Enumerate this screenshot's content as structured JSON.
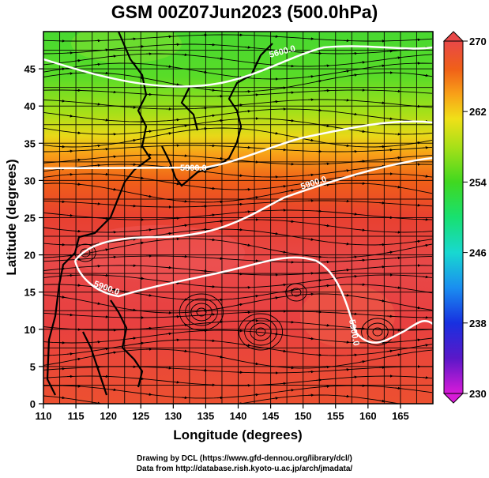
{
  "title": "GSM 00Z07Jun2023 (500.0hPa)",
  "axes": {
    "xlabel": "Longitude (degrees)",
    "ylabel": "Latitude  (degrees)",
    "xlim": [
      110,
      170
    ],
    "ylim": [
      0,
      50
    ],
    "xticks": [
      "110",
      "115",
      "120",
      "125",
      "130",
      "135",
      "140",
      "145",
      "150",
      "155",
      "160",
      "165"
    ],
    "yticks": [
      "0",
      "5",
      "10",
      "15",
      "20",
      "25",
      "30",
      "35",
      "40",
      "45"
    ]
  },
  "colorbar": {
    "range": [
      230,
      270
    ],
    "labels": [
      "270",
      "262",
      "254",
      "246",
      "238",
      "230"
    ],
    "colors": [
      "#d81bd8",
      "#5a18c8",
      "#1830e0",
      "#1a8ef0",
      "#18d8d0",
      "#18e070",
      "#40d820",
      "#a8e018",
      "#f0e018",
      "#f8a018",
      "#f06018",
      "#e83828",
      "#e84848"
    ]
  },
  "contours": [
    {
      "label": "5600.0"
    },
    {
      "label": "5800.0"
    },
    {
      "label": "5900.0"
    },
    {
      "label": "5900.0"
    },
    {
      "label": "5900.0"
    }
  ],
  "credits": {
    "line1": "Drawing by DCL (https://www.gfd-dennou.org/library/dcl/)",
    "line2": "Data from http://database.rish.kyoto-u.ac.jp/arch/jmadata/"
  }
}
